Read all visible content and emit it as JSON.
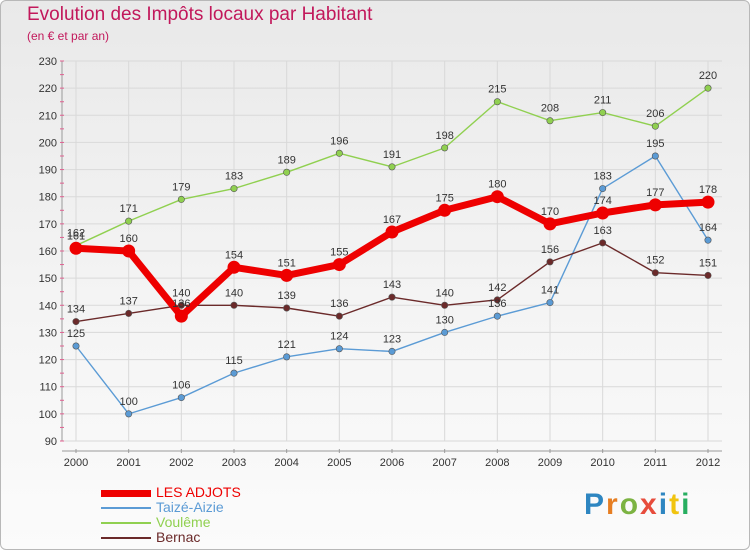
{
  "header": {
    "title": "Evolution des Impôts locaux par Habitant",
    "subtitle": "(en € et par an)"
  },
  "brand": {
    "logo_letters": [
      "P",
      "r",
      "o",
      "x",
      "i",
      "t",
      "i"
    ],
    "logo_colors": [
      "#2e86c1",
      "#e67e22",
      "#7cb342",
      "#e74c3c",
      "#2e86c1",
      "#f1c40f",
      "#27ae60"
    ]
  },
  "chart_data": {
    "type": "line",
    "title": "Evolution des Impôts locaux par Habitant",
    "subtitle": "(en € et par an)",
    "xlabel": "",
    "ylabel": "",
    "x": [
      "2000",
      "2001",
      "2002",
      "2003",
      "2004",
      "2005",
      "2006",
      "2007",
      "2008",
      "2009",
      "2010",
      "2011",
      "2012"
    ],
    "ylim": [
      90,
      230
    ],
    "yticks": [
      90,
      100,
      110,
      120,
      130,
      140,
      150,
      160,
      170,
      180,
      190,
      200,
      210,
      220,
      230
    ],
    "grid": true,
    "legend_position": "bottom-left",
    "series": [
      {
        "name": "Voulême",
        "color": "#90d050",
        "emphasis": false,
        "values": [
          162,
          171,
          179,
          183,
          189,
          196,
          191,
          198,
          215,
          208,
          211,
          206,
          220
        ]
      },
      {
        "name": "Taizé-Aizie",
        "color": "#5b9bd5",
        "emphasis": false,
        "values": [
          125,
          100,
          106,
          115,
          121,
          124,
          123,
          130,
          136,
          141,
          183,
          195,
          164
        ]
      },
      {
        "name": "Bernac",
        "color": "#6b2a2a",
        "emphasis": false,
        "values": [
          134,
          137,
          140,
          140,
          139,
          136,
          143,
          140,
          142,
          156,
          163,
          152,
          151
        ]
      },
      {
        "name": "LES ADJOTS",
        "color": "#ee0000",
        "emphasis": true,
        "values": [
          161,
          160,
          136,
          154,
          151,
          155,
          167,
          175,
          180,
          170,
          174,
          177,
          178
        ]
      }
    ],
    "legend_order": [
      "LES ADJOTS",
      "Taizé-Aizie",
      "Voulême",
      "Bernac"
    ]
  }
}
